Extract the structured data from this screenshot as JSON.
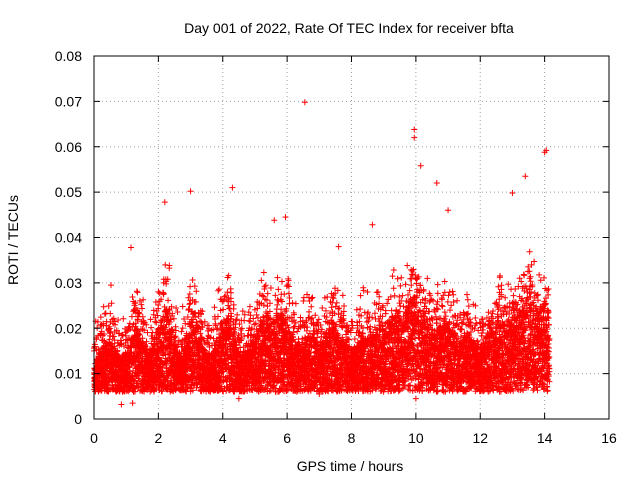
{
  "chart_data": {
    "type": "scatter",
    "title": "Day 001 of 2022, Rate Of TEC Index for receiver bfta",
    "xlabel": "GPS time / hours",
    "ylabel": "ROTI / TECUs",
    "xlim": [
      0,
      16
    ],
    "ylim": [
      0,
      0.08
    ],
    "xticks": [
      "0",
      "2",
      "4",
      "6",
      "8",
      "10",
      "12",
      "14",
      "16"
    ],
    "yticks": [
      "0",
      "0.01",
      "0.02",
      "0.03",
      "0.04",
      "0.05",
      "0.06",
      "0.07",
      "0.08"
    ],
    "grid": true,
    "marker": "+",
    "color": "#ff0000",
    "series": [
      {
        "x": [
          0.0,
          0.1,
          0.2,
          0.3,
          0.4,
          0.5,
          0.6,
          0.7,
          0.8,
          0.9,
          1.0,
          1.1,
          1.2,
          1.3,
          1.4,
          1.5,
          1.6,
          1.7,
          1.8,
          1.9,
          2.0,
          2.1,
          2.2,
          2.3,
          2.4,
          2.5,
          2.6,
          2.7,
          2.8,
          2.9,
          3.0,
          3.1,
          3.2,
          3.3,
          3.4,
          3.5,
          3.6,
          3.7,
          3.8,
          3.9,
          4.0,
          4.1,
          4.2,
          4.3,
          4.4,
          4.5,
          4.6,
          4.7,
          4.8,
          4.9,
          5.0,
          5.1,
          5.2,
          5.3,
          5.4,
          5.5,
          5.6,
          5.7,
          5.8,
          5.9,
          6.0,
          6.1,
          6.2,
          6.3,
          6.4,
          6.5,
          6.6,
          6.7,
          6.8,
          6.9,
          7.0,
          7.1,
          7.2,
          7.3,
          7.4,
          7.5,
          7.6,
          7.7,
          7.8,
          7.9,
          8.0,
          8.1,
          8.2,
          8.3,
          8.4,
          8.5,
          8.6,
          8.7,
          8.8,
          8.9,
          9.0,
          9.1,
          9.2,
          9.3,
          9.4,
          9.5,
          9.6,
          9.7,
          9.8,
          9.9,
          10.0,
          10.1,
          10.2,
          10.3,
          10.4,
          10.5,
          10.6,
          10.7,
          10.8,
          10.9,
          11.0,
          11.1,
          11.2,
          11.3,
          11.4,
          11.5,
          11.6,
          11.7,
          11.8,
          11.9,
          12.0,
          12.1,
          12.2,
          12.3,
          12.4,
          12.5,
          12.6,
          12.7,
          12.8,
          12.9,
          13.0,
          13.1,
          13.2,
          13.3,
          13.4,
          13.5,
          13.6,
          13.7,
          13.8,
          13.9,
          14.0,
          14.1
        ],
        "y": [
          0.01,
          0.012,
          0.013,
          0.014,
          0.016,
          0.018,
          0.015,
          0.013,
          0.012,
          0.011,
          0.012,
          0.014,
          0.016,
          0.018,
          0.017,
          0.015,
          0.014,
          0.013,
          0.014,
          0.016,
          0.018,
          0.02,
          0.024,
          0.022,
          0.018,
          0.015,
          0.013,
          0.012,
          0.014,
          0.017,
          0.02,
          0.022,
          0.019,
          0.016,
          0.014,
          0.013,
          0.012,
          0.013,
          0.015,
          0.017,
          0.019,
          0.02,
          0.021,
          0.018,
          0.015,
          0.013,
          0.012,
          0.013,
          0.014,
          0.015,
          0.016,
          0.018,
          0.02,
          0.022,
          0.021,
          0.019,
          0.02,
          0.022,
          0.021,
          0.02,
          0.019,
          0.018,
          0.016,
          0.015,
          0.014,
          0.015,
          0.016,
          0.017,
          0.016,
          0.015,
          0.014,
          0.015,
          0.017,
          0.018,
          0.019,
          0.018,
          0.017,
          0.016,
          0.015,
          0.014,
          0.013,
          0.014,
          0.015,
          0.016,
          0.017,
          0.016,
          0.015,
          0.016,
          0.018,
          0.019,
          0.018,
          0.017,
          0.019,
          0.021,
          0.022,
          0.021,
          0.02,
          0.022,
          0.024,
          0.025,
          0.024,
          0.022,
          0.021,
          0.02,
          0.019,
          0.018,
          0.017,
          0.018,
          0.019,
          0.02,
          0.019,
          0.018,
          0.017,
          0.016,
          0.015,
          0.016,
          0.017,
          0.016,
          0.015,
          0.014,
          0.014,
          0.015,
          0.016,
          0.017,
          0.018,
          0.019,
          0.02,
          0.019,
          0.018,
          0.019,
          0.02,
          0.021,
          0.022,
          0.023,
          0.024,
          0.025,
          0.024,
          0.023,
          0.022,
          0.023,
          0.024,
          0.022
        ]
      }
    ],
    "notable_points": [
      {
        "x": 6.55,
        "y": 0.0698
      },
      {
        "x": 9.95,
        "y": 0.0638
      },
      {
        "x": 9.95,
        "y": 0.062
      },
      {
        "x": 14.05,
        "y": 0.0592
      },
      {
        "x": 14.0,
        "y": 0.0588
      },
      {
        "x": 10.15,
        "y": 0.0558
      },
      {
        "x": 13.4,
        "y": 0.0535
      },
      {
        "x": 10.65,
        "y": 0.052
      },
      {
        "x": 4.3,
        "y": 0.051
      },
      {
        "x": 3.0,
        "y": 0.0502
      },
      {
        "x": 13.0,
        "y": 0.0498
      },
      {
        "x": 2.2,
        "y": 0.0478
      },
      {
        "x": 5.95,
        "y": 0.0445
      },
      {
        "x": 5.6,
        "y": 0.0438
      },
      {
        "x": 1.15,
        "y": 0.0378
      },
      {
        "x": 7.6,
        "y": 0.038
      },
      {
        "x": 8.65,
        "y": 0.0428
      },
      {
        "x": 11.0,
        "y": 0.046
      },
      {
        "x": 0.85,
        "y": 0.0032
      },
      {
        "x": 10.0,
        "y": 0.0045
      },
      {
        "x": 4.5,
        "y": 0.0045
      },
      {
        "x": 1.2,
        "y": 0.0035
      },
      {
        "x": 7.0,
        "y": 0.0055
      }
    ]
  }
}
